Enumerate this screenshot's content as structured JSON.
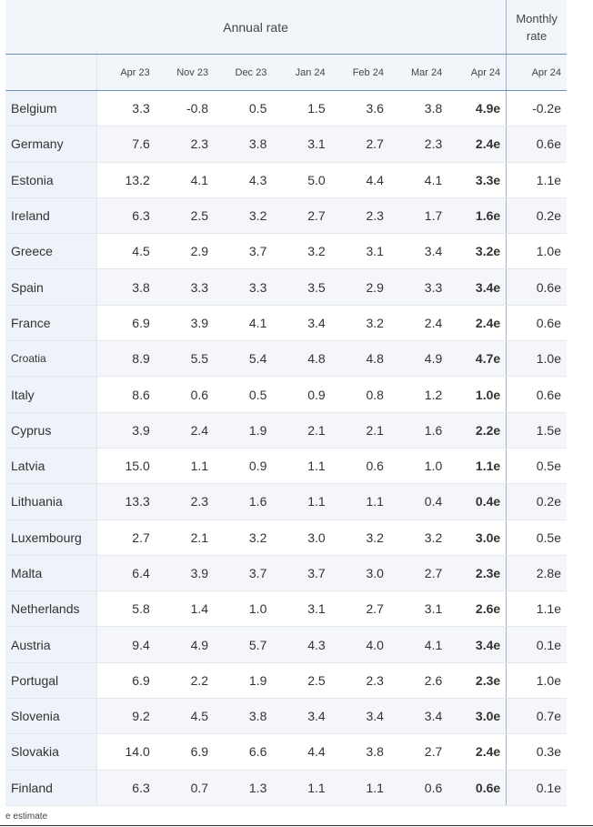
{
  "header": {
    "annual_label": "Annual rate",
    "monthly_label_line1": "Monthly",
    "monthly_label_line2": "rate",
    "columns": [
      "Apr 23",
      "Nov 23",
      "Dec 23",
      "Jan 24",
      "Feb 24",
      "Mar 24",
      "Apr 24",
      "Apr 24"
    ]
  },
  "rows": [
    {
      "country": "Belgium",
      "values": [
        "3.3",
        "-0.8",
        "0.5",
        "1.5",
        "3.6",
        "3.8",
        "4.9e",
        "-0.2e"
      ]
    },
    {
      "country": "Germany",
      "values": [
        "7.6",
        "2.3",
        "3.8",
        "3.1",
        "2.7",
        "2.3",
        "2.4e",
        "0.6e"
      ]
    },
    {
      "country": "Estonia",
      "values": [
        "13.2",
        "4.1",
        "4.3",
        "5.0",
        "4.4",
        "4.1",
        "3.3e",
        "1.1e"
      ]
    },
    {
      "country": "Ireland",
      "values": [
        "6.3",
        "2.5",
        "3.2",
        "2.7",
        "2.3",
        "1.7",
        "1.6e",
        "0.2e"
      ]
    },
    {
      "country": "Greece",
      "values": [
        "4.5",
        "2.9",
        "3.7",
        "3.2",
        "3.1",
        "3.4",
        "3.2e",
        "1.0e"
      ]
    },
    {
      "country": "Spain",
      "values": [
        "3.8",
        "3.3",
        "3.3",
        "3.5",
        "2.9",
        "3.3",
        "3.4e",
        "0.6e"
      ]
    },
    {
      "country": "France",
      "values": [
        "6.9",
        "3.9",
        "4.1",
        "3.4",
        "3.2",
        "2.4",
        "2.4e",
        "0.6e"
      ]
    },
    {
      "country": "Croatia",
      "values": [
        "8.9",
        "5.5",
        "5.4",
        "4.8",
        "4.8",
        "4.9",
        "4.7e",
        "1.0e"
      ]
    },
    {
      "country": "Italy",
      "values": [
        "8.6",
        "0.6",
        "0.5",
        "0.9",
        "0.8",
        "1.2",
        "1.0e",
        "0.6e"
      ]
    },
    {
      "country": "Cyprus",
      "values": [
        "3.9",
        "2.4",
        "1.9",
        "2.1",
        "2.1",
        "1.6",
        "2.2e",
        "1.5e"
      ]
    },
    {
      "country": "Latvia",
      "values": [
        "15.0",
        "1.1",
        "0.9",
        "1.1",
        "0.6",
        "1.0",
        "1.1e",
        "0.5e"
      ]
    },
    {
      "country": "Lithuania",
      "values": [
        "13.3",
        "2.3",
        "1.6",
        "1.1",
        "1.1",
        "0.4",
        "0.4e",
        "0.2e"
      ]
    },
    {
      "country": "Luxembourg",
      "values": [
        "2.7",
        "2.1",
        "3.2",
        "3.0",
        "3.2",
        "3.2",
        "3.0e",
        "0.5e"
      ]
    },
    {
      "country": "Malta",
      "values": [
        "6.4",
        "3.9",
        "3.7",
        "3.7",
        "3.0",
        "2.7",
        "2.3e",
        "2.8e"
      ]
    },
    {
      "country": "Netherlands",
      "values": [
        "5.8",
        "1.4",
        "1.0",
        "3.1",
        "2.7",
        "3.1",
        "2.6e",
        "1.1e"
      ]
    },
    {
      "country": "Austria",
      "values": [
        "9.4",
        "4.9",
        "5.7",
        "4.3",
        "4.0",
        "4.1",
        "3.4e",
        "0.1e"
      ]
    },
    {
      "country": "Portugal",
      "values": [
        "6.9",
        "2.2",
        "1.9",
        "2.5",
        "2.3",
        "2.6",
        "2.3e",
        "1.0e"
      ]
    },
    {
      "country": "Slovenia",
      "values": [
        "9.2",
        "4.5",
        "3.8",
        "3.4",
        "3.4",
        "3.4",
        "3.0e",
        "0.7e"
      ]
    },
    {
      "country": "Slovakia",
      "values": [
        "14.0",
        "6.9",
        "6.6",
        "4.4",
        "3.8",
        "2.7",
        "2.4e",
        "0.3e"
      ]
    },
    {
      "country": "Finland",
      "values": [
        "6.3",
        "0.7",
        "1.3",
        "1.1",
        "1.1",
        "0.6",
        "0.6e",
        "0.1e"
      ]
    }
  ],
  "footnote": "e estimate"
}
